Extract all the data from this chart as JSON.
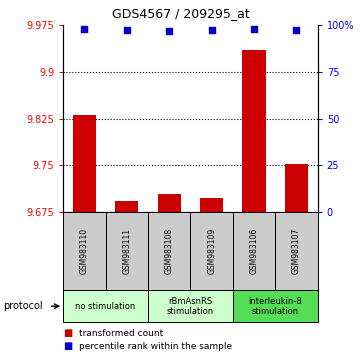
{
  "title": "GDS4567 / 209295_at",
  "samples": [
    "GSM983110",
    "GSM983111",
    "GSM983108",
    "GSM983109",
    "GSM983106",
    "GSM983107"
  ],
  "bar_values": [
    9.831,
    9.694,
    9.705,
    9.698,
    9.935,
    9.752
  ],
  "scatter_pct": [
    97.5,
    97.0,
    96.8,
    97.0,
    97.5,
    97.3
  ],
  "ylim_left": [
    9.675,
    9.975
  ],
  "ylim_right": [
    0,
    100
  ],
  "yticks_left": [
    9.675,
    9.75,
    9.825,
    9.9,
    9.975
  ],
  "yticks_right": [
    0,
    25,
    50,
    75,
    100
  ],
  "ytick_labels_left": [
    "9.675",
    "9.75",
    "9.825",
    "9.9",
    "9.975"
  ],
  "ytick_labels_right": [
    "0",
    "25",
    "50",
    "75",
    "100%"
  ],
  "hlines": [
    9.9,
    9.825,
    9.75
  ],
  "bar_color": "#cc0000",
  "scatter_color": "#0000cc",
  "groups": [
    {
      "label": "no stimulation",
      "start": 0,
      "end": 2,
      "color": "#ccffcc"
    },
    {
      "label": "rBmAsnRS\nstimulation",
      "start": 2,
      "end": 4,
      "color": "#ccffcc"
    },
    {
      "label": "interleukin-8\nstimulation",
      "start": 4,
      "end": 6,
      "color": "#55dd55"
    }
  ],
  "bar_bottom": 9.675,
  "bar_width": 0.55,
  "legend_items": [
    {
      "label": "transformed count",
      "color": "#cc0000"
    },
    {
      "label": "percentile rank within the sample",
      "color": "#0000cc"
    }
  ]
}
